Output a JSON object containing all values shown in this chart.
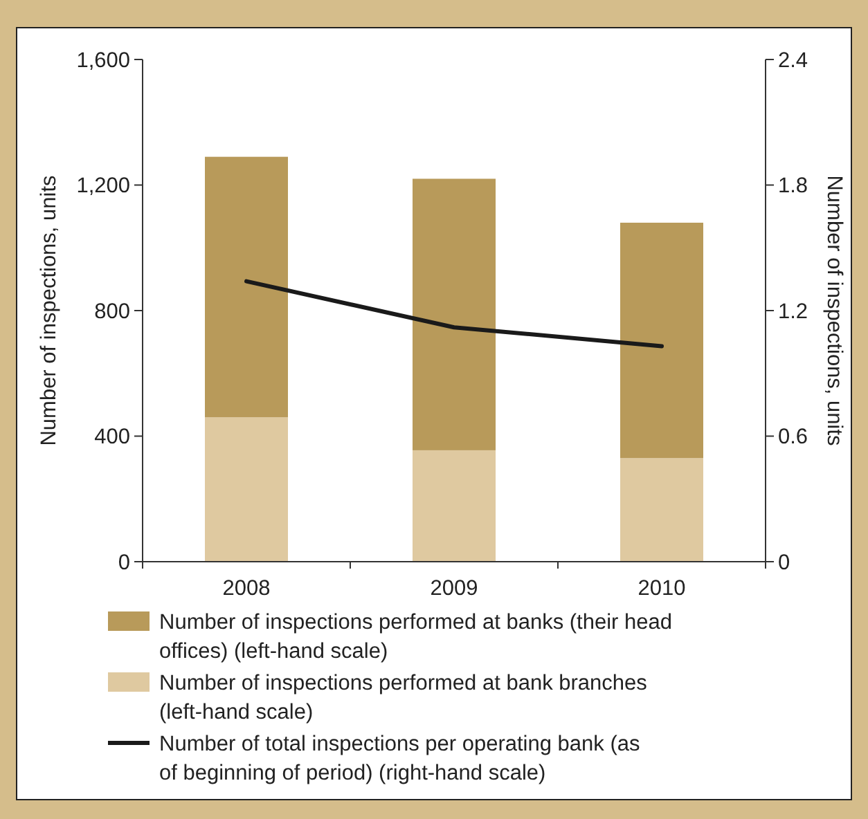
{
  "chart_data": {
    "type": "bar",
    "stacked": true,
    "categories": [
      "2008",
      "2009",
      "2010"
    ],
    "series": [
      {
        "name": "Number of inspections performed at bank branches (left-hand scale)",
        "color": "#dfc9a0",
        "values": [
          460,
          355,
          330
        ]
      },
      {
        "name": "Number of inspections performed at banks (their head offices) (left-hand scale)",
        "color": "#b89a5a",
        "values": [
          830,
          865,
          750
        ]
      },
      {
        "name": "Number of total inspections per operating bank (as of beginning of period) (right-hand scale)",
        "type": "line",
        "axis": "y2",
        "color": "#1a1a1a",
        "values": [
          1.34,
          1.12,
          1.03
        ]
      }
    ],
    "ylabel": "Number of inspections, units",
    "y2label": "Number of inspections, units",
    "ylim": [
      0,
      1600
    ],
    "yticks": [
      {
        "value": 0,
        "label": "0"
      },
      {
        "value": 400,
        "label": "400"
      },
      {
        "value": 800,
        "label": "800"
      },
      {
        "value": 1200,
        "label": "1,200"
      },
      {
        "value": 1600,
        "label": "1,600"
      }
    ],
    "y2lim": [
      0,
      2.4
    ],
    "y2ticks": [
      0,
      0.6,
      1.2,
      1.8,
      2.4
    ],
    "legend": "bottom",
    "grid": false
  }
}
